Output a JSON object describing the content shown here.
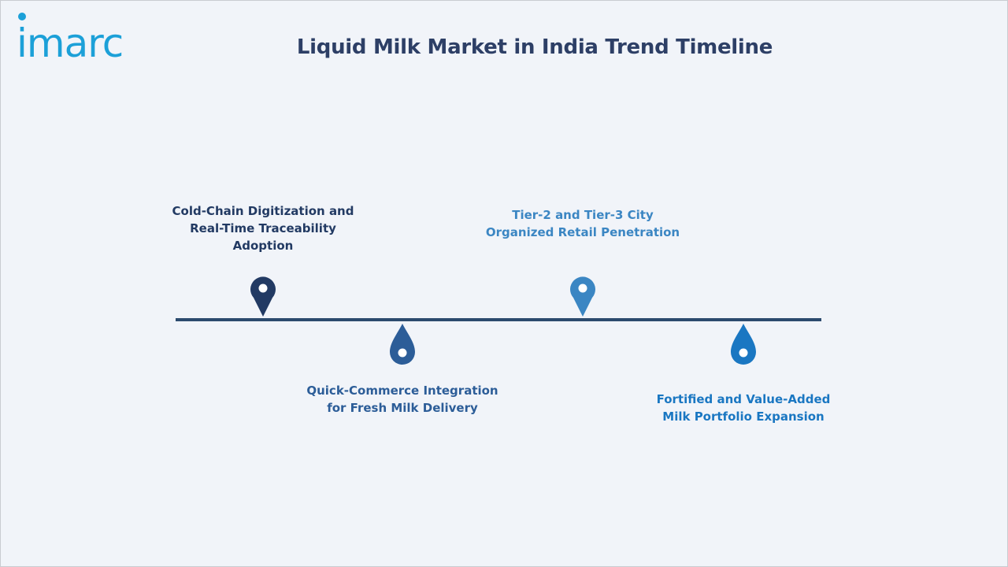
{
  "brand": {
    "logo_text": "imarc",
    "logo_color": "#1ca0d8"
  },
  "title": "Liquid Milk Market in India Trend Timeline",
  "colors": {
    "background": "#f1f4f9",
    "title": "#2d3f66",
    "line": "#2c4a6e"
  },
  "milestones": [
    {
      "label": "Cold-Chain Digitization and Real-Time Traceability Adoption",
      "position": "above",
      "marker": "map-pin",
      "color": "#223a63"
    },
    {
      "label": "Quick-Commerce Integration for Fresh Milk Delivery",
      "position": "below",
      "marker": "droplet",
      "color": "#2c5d98"
    },
    {
      "label": "Tier-2 and Tier-3 City Organized Retail Penetration",
      "position": "above",
      "marker": "map-pin",
      "color": "#3b86c3"
    },
    {
      "label": "Fortified and Value-Added Milk Portfolio Expansion",
      "position": "below",
      "marker": "droplet",
      "color": "#1a77c2"
    }
  ]
}
